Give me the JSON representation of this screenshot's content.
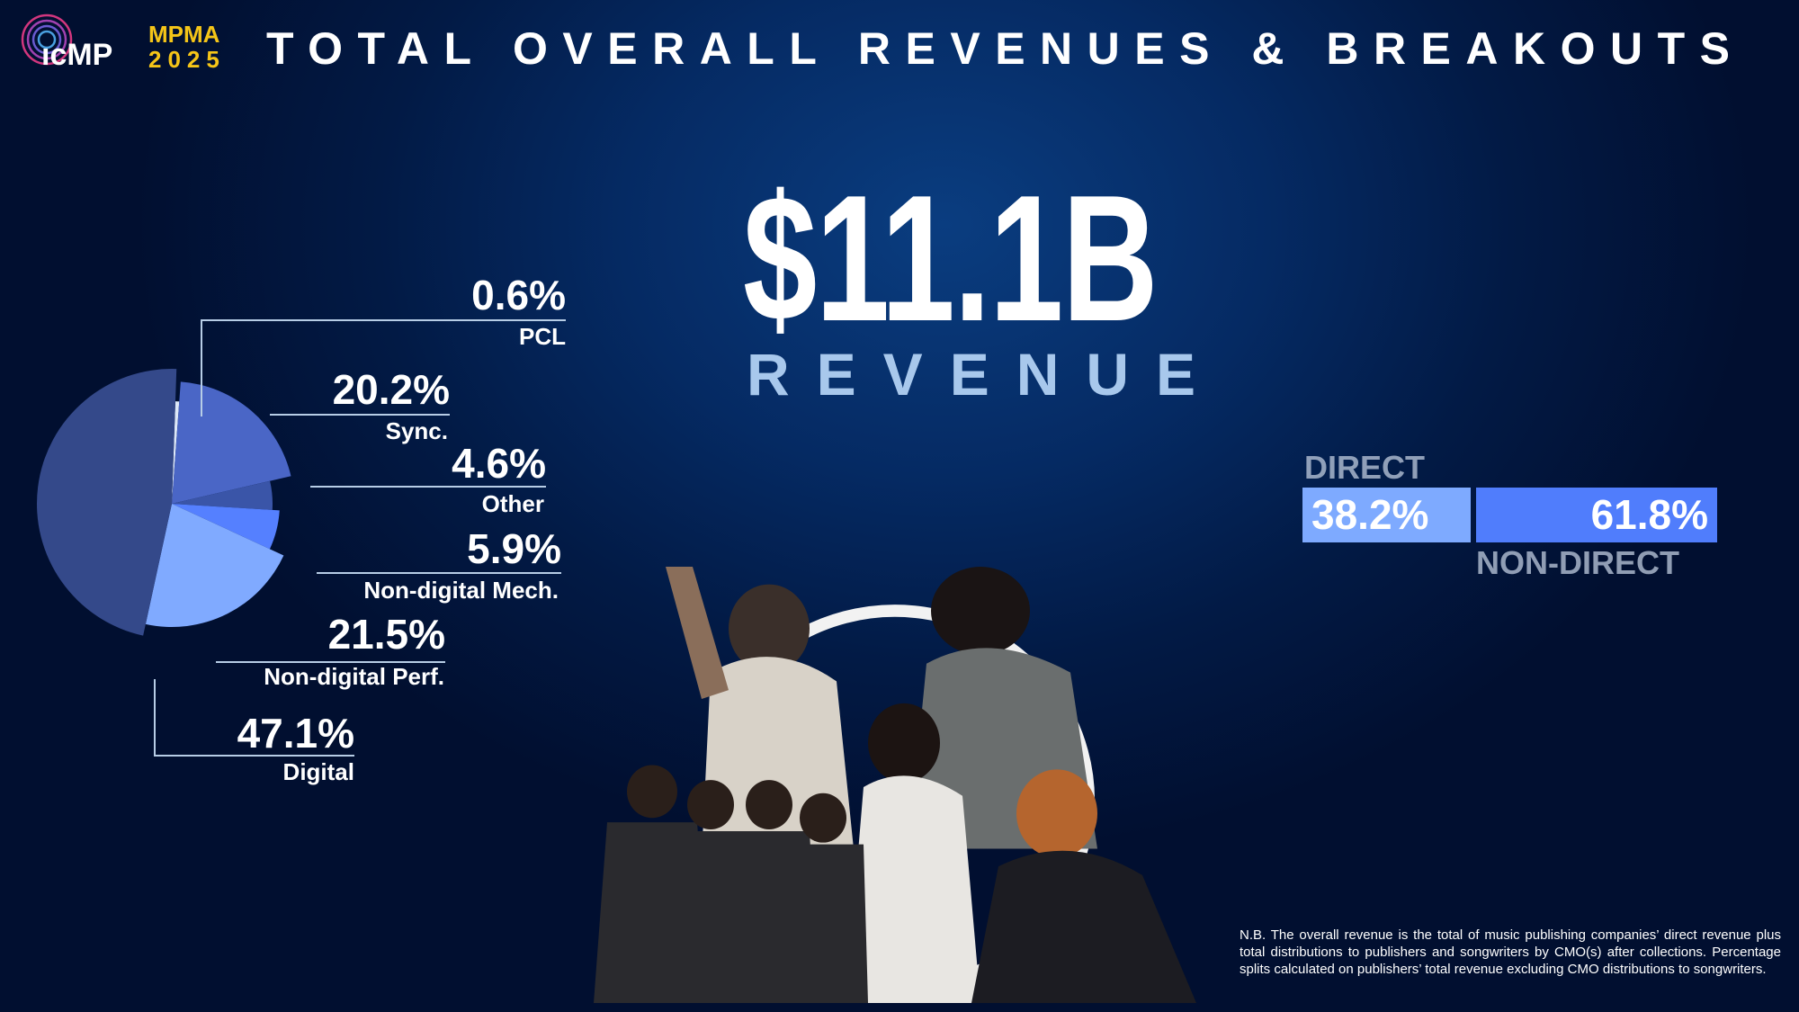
{
  "header": {
    "logo_text": "ICMP",
    "event": "MPMA",
    "year": "2025",
    "title": "TOTAL OVERALL REVENUES & BREAKOUTS"
  },
  "headline": {
    "amount": "$11.1B",
    "label": "REVENUE"
  },
  "chart_data": [
    {
      "type": "pie",
      "title": "",
      "categories": [
        "PCL",
        "Sync.",
        "Other",
        "Non-digital Mech.",
        "Non-digital Perf.",
        "Digital"
      ],
      "values": [
        0.6,
        20.2,
        4.6,
        5.9,
        21.5,
        47.1
      ],
      "value_labels": [
        "0.6%",
        "20.2%",
        "4.6%",
        "5.9%",
        "21.5%",
        "47.1%"
      ],
      "colors": [
        "#dde8f8",
        "#4a66c6",
        "#3a55a8",
        "#5580ff",
        "#80aaff",
        "#34498a"
      ],
      "legend": "none"
    },
    {
      "type": "bar",
      "orientation": "horizontal-stacked",
      "categories": [
        "DIRECT",
        "NON-DIRECT"
      ],
      "values": [
        38.2,
        61.8
      ],
      "value_labels": [
        "38.2%",
        "61.8%"
      ],
      "colors": [
        "#7eaaff",
        "#507dfc"
      ]
    }
  ],
  "footnote": "N.B. The overall revenue is the total of music publishing companies’ direct revenue plus total distributions to publishers and songwriters by CMO(s) after collections. Percentage splits calculated on publishers’ total revenue excluding CMO distributions to songwriters."
}
